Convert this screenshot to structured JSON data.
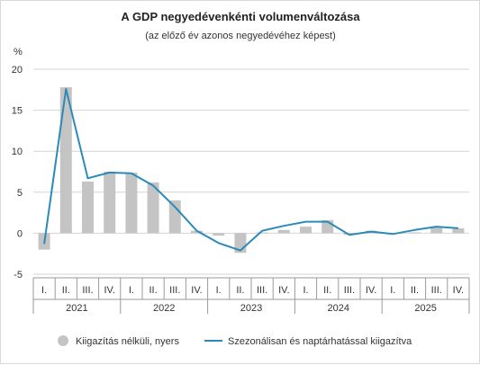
{
  "chart_data": {
    "type": "bar",
    "title": "A GDP negyedévenkénti volumenváltozása",
    "subtitle": "(az előző év azonos negyedévéhez képest)",
    "ylabel": "%",
    "ylim": [
      -5,
      20
    ],
    "yticks": [
      -5,
      0,
      5,
      10,
      15,
      20
    ],
    "grid": true,
    "legend_position": "bottom",
    "quarter_labels": [
      "I.",
      "II.",
      "III.",
      "IV."
    ],
    "years": [
      "2021",
      "2022",
      "2023",
      "2024",
      "2025"
    ],
    "categories": [
      "I.",
      "II.",
      "III.",
      "IV.",
      "I.",
      "II.",
      "III.",
      "IV.",
      "I.",
      "II.",
      "III.",
      "IV.",
      "I.",
      "II.",
      "III.",
      "IV.",
      "I.",
      "II.",
      "III.",
      "IV."
    ],
    "series": [
      {
        "name": "Kiigazítás nélküli, nyers",
        "kind": "bar",
        "color": "#c4c4c4",
        "values": [
          -2.0,
          17.8,
          6.3,
          7.5,
          7.4,
          6.2,
          4.0,
          0.3,
          -0.3,
          -2.4,
          0.1,
          0.4,
          0.8,
          1.6,
          -0.2,
          0.3,
          0.0,
          0.1,
          0.8,
          0.6
        ]
      },
      {
        "name": "Szezonálisan és naptárhatással kiigazítva",
        "kind": "line",
        "color": "#2a8bb8",
        "values": [
          -1.3,
          17.6,
          6.7,
          7.4,
          7.3,
          5.8,
          3.2,
          0.3,
          -1.2,
          -2.1,
          0.3,
          0.9,
          1.4,
          1.4,
          -0.2,
          0.2,
          -0.1,
          0.4,
          0.8,
          0.6
        ]
      }
    ]
  }
}
